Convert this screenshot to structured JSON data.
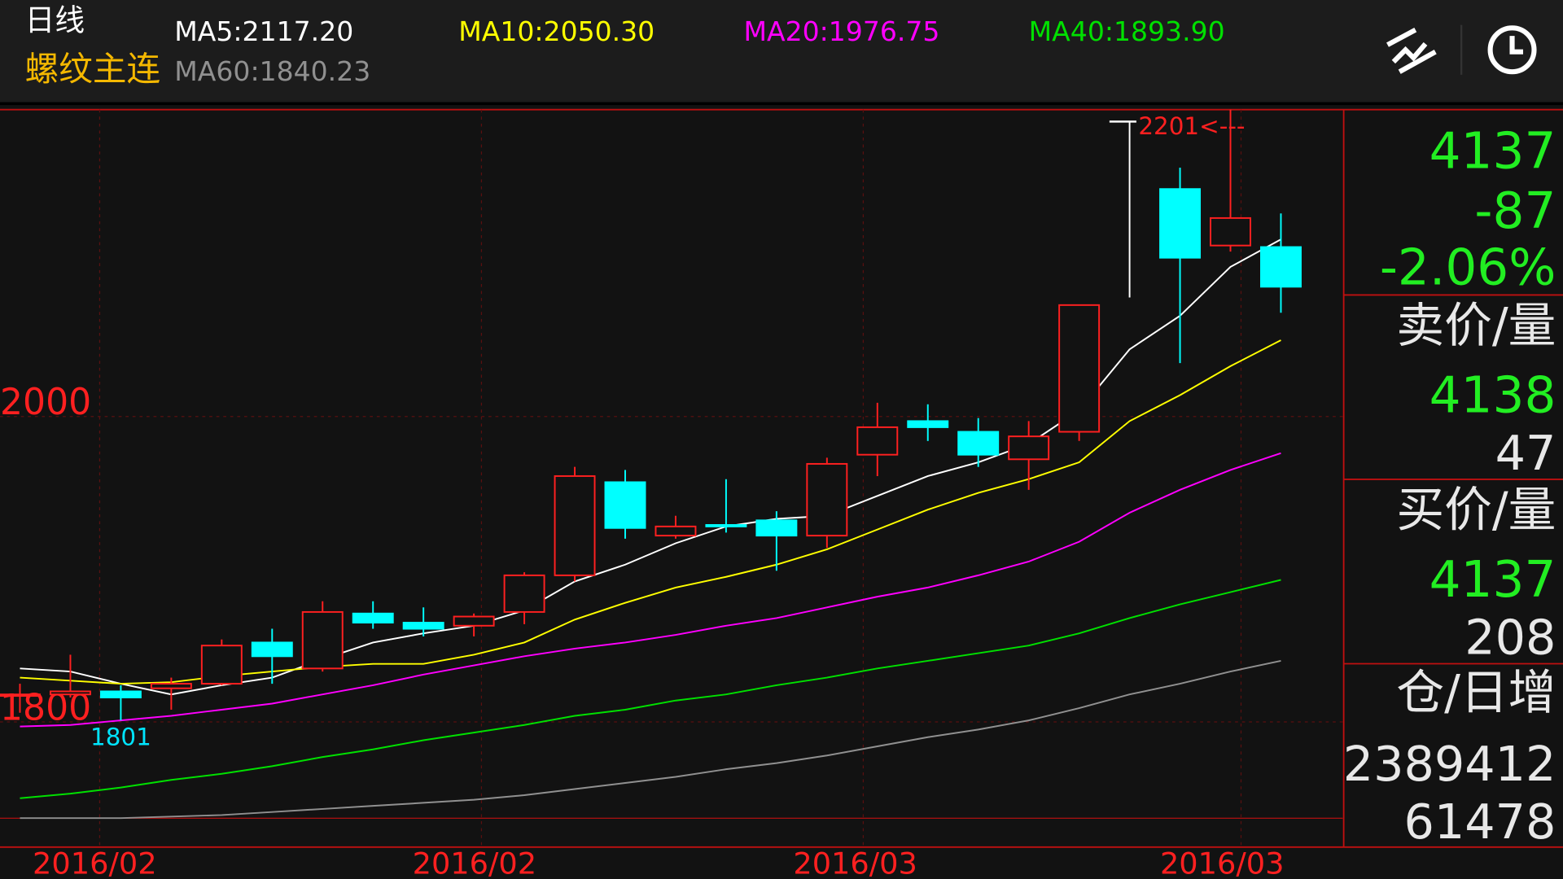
{
  "header": {
    "period": "日线",
    "instrument": "螺纹主连"
  },
  "chart_data": {
    "type": "candlestick",
    "open": [
      1817,
      1818,
      1820,
      1822,
      1825,
      1852,
      1835,
      1871,
      1865,
      1863,
      1872,
      1896,
      1957,
      1922,
      1929,
      1932,
      1922,
      1975,
      1997,
      1990,
      1972,
      1990,
      2078,
      2149,
      2112,
      2111
    ],
    "high": [
      1825,
      1844,
      1824,
      1829,
      1854,
      1861,
      1879,
      1879,
      1875,
      1871,
      1898,
      1967,
      1965,
      1935,
      1959,
      1938,
      1973,
      2009,
      2008,
      1999,
      1997,
      2073,
      2193,
      2163,
      2201,
      2133
    ],
    "low": [
      1806,
      1816,
      1801,
      1808,
      1824,
      1825,
      1833,
      1861,
      1856,
      1856,
      1864,
      1892,
      1920,
      1920,
      1924,
      1899,
      1914,
      1961,
      1984,
      1967,
      1952,
      1984,
      2078,
      2035,
      2108,
      2068
    ],
    "close": [
      1818,
      1820,
      1816,
      1825,
      1850,
      1843,
      1872,
      1865,
      1861,
      1869,
      1896,
      1961,
      1927,
      1928,
      1928,
      1922,
      1969,
      1993,
      1993,
      1975,
      1987,
      2073,
      2078,
      2104,
      2130,
      2085
    ],
    "up_color": "#ff2020",
    "down_color": "#00ffff",
    "flat_color": "#ffffff",
    "ma_series": [
      {
        "name": "MA5:2117.20",
        "color": "#ffffff",
        "values": [
          1835,
          1833,
          1825,
          1818,
          1824,
          1829,
          1841,
          1852,
          1858,
          1863,
          1873,
          1892,
          1903,
          1917,
          1928,
          1933,
          1935,
          1948,
          1961,
          1970,
          1982,
          2004,
          2044,
          2066,
          2098,
          2116
        ]
      },
      {
        "name": "MA10:2050.30",
        "color": "#ffff00",
        "values": [
          1829,
          1827,
          1825,
          1826,
          1830,
          1833,
          1836,
          1838,
          1838,
          1844,
          1852,
          1867,
          1878,
          1888,
          1895,
          1903,
          1913,
          1926,
          1939,
          1950,
          1959,
          1970,
          1997,
          2014,
          2033,
          2050
        ]
      },
      {
        "name": "MA20:1976.75",
        "color": "#ff00ff",
        "values": [
          1797,
          1798,
          1801,
          1804,
          1808,
          1812,
          1818,
          1824,
          1831,
          1837,
          1843,
          1848,
          1852,
          1857,
          1863,
          1868,
          1875,
          1882,
          1888,
          1896,
          1905,
          1918,
          1937,
          1952,
          1965,
          1976
        ]
      },
      {
        "name": "MA40:1893.90",
        "color": "#00e000",
        "values": [
          1750,
          1753,
          1757,
          1762,
          1766,
          1771,
          1777,
          1782,
          1788,
          1793,
          1798,
          1804,
          1808,
          1814,
          1818,
          1824,
          1829,
          1835,
          1840,
          1845,
          1850,
          1858,
          1868,
          1877,
          1885,
          1893
        ]
      },
      {
        "name": "MA60:1840.23",
        "color": "#909090",
        "values": [
          1737,
          1737,
          1737,
          1738,
          1739,
          1741,
          1743,
          1745,
          1747,
          1749,
          1752,
          1756,
          1760,
          1764,
          1769,
          1773,
          1778,
          1784,
          1790,
          1795,
          1801,
          1809,
          1818,
          1825,
          1833,
          1840
        ]
      }
    ],
    "ylim": [
      1718,
      2201
    ],
    "yticks": [
      1800,
      2000
    ],
    "grid": true,
    "x_labels": [
      "2016/02",
      "2016/02",
      "2016/03",
      "2016/03"
    ],
    "annotations": [
      {
        "text": "1801",
        "value": 1801
      },
      {
        "text": "2201<---",
        "value": 2201
      }
    ]
  },
  "side_panel": {
    "price": 4137,
    "change": -87,
    "change_pct": "-2.06%",
    "ask_label": "卖价/量",
    "ask_price": 4138,
    "ask_volume": 47,
    "bid_label": "买价/量",
    "bid_price": 4137,
    "bid_volume": 208,
    "oi_label": "仓/日增",
    "open_interest": 2389412,
    "oi_change": 61478
  }
}
